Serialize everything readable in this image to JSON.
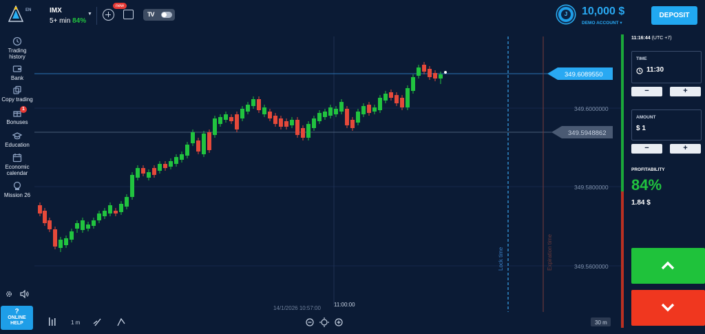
{
  "sidebar": {
    "lang": "EN",
    "items": [
      {
        "label1": "Trading",
        "label2": "history",
        "icon": "history-icon"
      },
      {
        "label1": "Bank",
        "label2": "",
        "icon": "wallet-icon"
      },
      {
        "label1": "Copy trading",
        "label2": "",
        "icon": "copy-icon"
      },
      {
        "label1": "Bonuses",
        "label2": "",
        "icon": "gift-icon",
        "badge": "1"
      },
      {
        "label1": "Education",
        "label2": "",
        "icon": "graduation-cap-icon"
      },
      {
        "label1": "Economic",
        "label2": "calendar",
        "icon": "calendar-icon"
      },
      {
        "label1": "Mission 26",
        "label2": "",
        "icon": "mission-icon"
      }
    ],
    "help_q": "?",
    "help_1": "ONLINE",
    "help_2": "HELP"
  },
  "topbar": {
    "asset": "IMX",
    "duration": "5+ min",
    "payout": "84%",
    "new_badge": "new",
    "tv_logo": "TV"
  },
  "account": {
    "avatar_letter": "J",
    "balance": "10,000 $",
    "type": "DEMO ACCOUNT ▾",
    "deposit_label": "DEPOSIT"
  },
  "chart": {
    "price_current": "349.6089550",
    "price_entry": "349.5948862",
    "grid_prices": [
      "349.6000000",
      "349.5800000",
      "349.5600000"
    ],
    "cursor_datetime": "14/1/2026 10:57:00",
    "time_tick": "11:00:00",
    "lock_time_label": "Lock time",
    "expiration_label": "Expiration time",
    "candle_period": "1 m",
    "zoom_label": "30 m",
    "colors": {
      "up": "#21c33f",
      "down": "#e5493a",
      "grid": "#17294a",
      "price_line": "#29a9f3"
    }
  },
  "panel": {
    "clock": "11:16:44",
    "tz": "(UTC +7)",
    "time_label": "TIME",
    "time_value": "11:30",
    "amount_label": "AMOUNT",
    "amount_value": "$ 1",
    "minus": "−",
    "plus": "+",
    "profit_label": "PROFITABILITY",
    "profit_pct": "84%",
    "profit_amount": "1.84 $"
  }
}
